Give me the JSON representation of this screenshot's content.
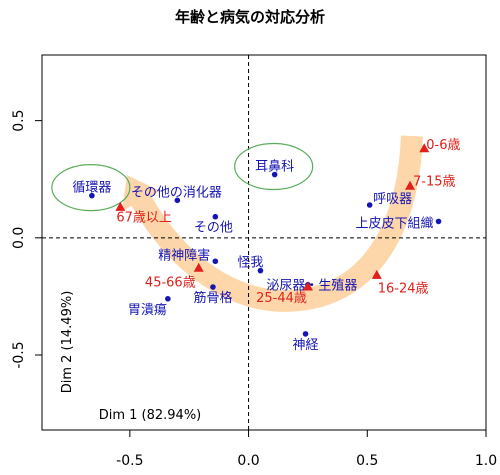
{
  "chart_data": {
    "type": "scatter",
    "title": "年齢と病気の対応分析",
    "xlabel": "Dim 1 (82.94%)",
    "ylabel": "Dim 2 (14.49%)",
    "xlim": [
      -0.87,
      1.0
    ],
    "ylim": [
      -0.82,
      0.78
    ],
    "xticks": [
      -0.5,
      0.0,
      0.5,
      1.0
    ],
    "xtick_labels": [
      "-0.5",
      "0.0",
      "0.5",
      "1.0"
    ],
    "yticks": [
      -0.5,
      0.0,
      0.5
    ],
    "ytick_labels": [
      "-0.5",
      "0.0",
      "0.5"
    ],
    "grid": false,
    "zero_lines": true,
    "series": [
      {
        "marker": "circle",
        "color": "#1515b5",
        "points": [
          {
            "label": "循環器",
            "x": -0.66,
            "y": 0.18
          },
          {
            "label": "その他の消化器",
            "x": -0.3,
            "y": 0.16
          },
          {
            "label": "その他",
            "x": -0.14,
            "y": 0.09
          },
          {
            "label": "耳鼻科",
            "x": 0.11,
            "y": 0.27
          },
          {
            "label": "呼吸器",
            "x": 0.51,
            "y": 0.14
          },
          {
            "label": "上皮皮下組織",
            "x": 0.8,
            "y": 0.07
          },
          {
            "label": "精神障害",
            "x": -0.14,
            "y": -0.1
          },
          {
            "label": "怪我",
            "x": 0.05,
            "y": -0.14
          },
          {
            "label": "泌尿器・生殖器",
            "x": 0.25,
            "y": -0.2
          },
          {
            "label": "筋骨格",
            "x": -0.15,
            "y": -0.21
          },
          {
            "label": "胃潰瘍",
            "x": -0.34,
            "y": -0.26
          },
          {
            "label": "神経",
            "x": 0.24,
            "y": -0.41
          }
        ]
      },
      {
        "marker": "triangle",
        "color": "#e0201a",
        "points": [
          {
            "label": "0-6歳",
            "x": 0.74,
            "y": 0.38
          },
          {
            "label": "7-15歳",
            "x": 0.68,
            "y": 0.22
          },
          {
            "label": "67歳以上",
            "x": -0.54,
            "y": 0.13
          },
          {
            "label": "45-66歳",
            "x": -0.21,
            "y": -0.13
          },
          {
            "label": "25-44歳",
            "x": 0.25,
            "y": -0.21
          },
          {
            "label": "16-24歳",
            "x": 0.54,
            "y": -0.16
          }
        ]
      }
    ],
    "highlighted": [
      "循環器",
      "耳鼻科"
    ],
    "colors": {
      "highlight": "#5aac5a",
      "arrow": "#fcc98e",
      "frame": "#000000"
    }
  }
}
